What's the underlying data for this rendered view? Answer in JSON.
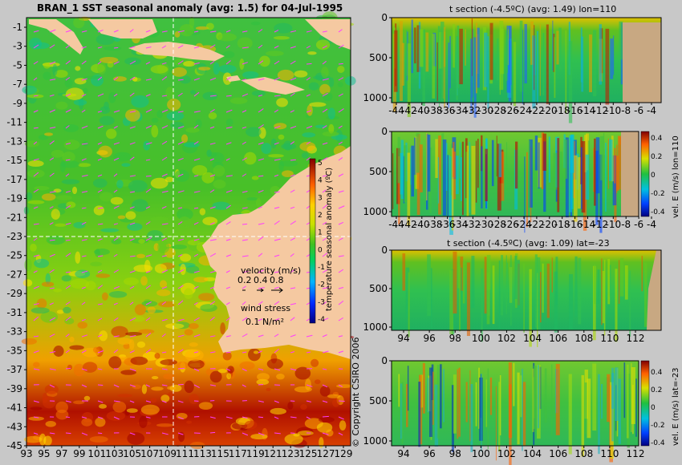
{
  "colors": {
    "background": "#c8c8c8",
    "land": "#f5c9a1",
    "section_land": "#c8a882",
    "vector": "#ff3cff",
    "section_line": "#ffffff"
  },
  "copyright": "© Copyright CSIRO 2006",
  "chart_data": [
    {
      "type": "heatmap",
      "panel": "map",
      "title": "BRAN_1  SST seasonal anomaly  (avg: 1.5) for 04-Jul-1995",
      "x_ticks": [
        "93",
        "95",
        "97",
        "99",
        "101",
        "103",
        "105",
        "107",
        "109",
        "111",
        "113",
        "115",
        "117",
        "119",
        "121",
        "123",
        "125",
        "127",
        "129"
      ],
      "y_ticks": [
        "-1",
        "-3",
        "-5",
        "-7",
        "-9",
        "-11",
        "-13",
        "-15",
        "-17",
        "-19",
        "-21",
        "-23",
        "-25",
        "-27",
        "-29",
        "-31",
        "-33",
        "-35",
        "-37",
        "-39",
        "-41",
        "-43",
        "-45"
      ],
      "xlim": [
        93,
        130
      ],
      "ylim": [
        -45,
        0
      ],
      "section_lines": {
        "lon": 110,
        "lat": -23
      },
      "colorbar": {
        "label": "temperature seasonal anomaly (ºC)",
        "ticks": [
          "5",
          "4",
          "3",
          "2",
          "1",
          "0",
          "-1",
          "-2",
          "-3",
          "-4"
        ],
        "range": [
          -4,
          5
        ]
      },
      "legend": {
        "velocity_title": "velocity (m/s)",
        "velocity_values": [
          "0.2",
          "0.4",
          "0.8"
        ],
        "wind_title": "wind stress",
        "wind_value": "0.1 N/m²"
      }
    },
    {
      "type": "heatmap",
      "panel": "t-section-lon",
      "title": "t section (-4.5ºC) (avg: 1.49) lon=110",
      "x_ticks": [
        "-44",
        "-42",
        "-40",
        "-38",
        "-36",
        "-34",
        "-32",
        "-30",
        "-28",
        "-26",
        "-24",
        "-22",
        "-20",
        "-18",
        "-16",
        "-14",
        "-12",
        "-10",
        "-8",
        "-6",
        "-4"
      ],
      "y_ticks": [
        "0",
        "500",
        "1000"
      ]
    },
    {
      "type": "heatmap",
      "panel": "vel-section-lon",
      "title": "",
      "x_ticks": [
        "-44",
        "-42",
        "-40",
        "-38",
        "-36",
        "-34",
        "-32",
        "-30",
        "-28",
        "-26",
        "-24",
        "-22",
        "-20",
        "-18",
        "-16",
        "-14",
        "-12",
        "-10",
        "-8",
        "-6",
        "-4"
      ],
      "y_ticks": [
        "0",
        "500",
        "1000"
      ],
      "colorbar": {
        "label": "vel. E (m/s) lon=110",
        "ticks": [
          "0.4",
          "0.2",
          "0",
          "-0.2",
          "-0.4"
        ]
      }
    },
    {
      "type": "heatmap",
      "panel": "t-section-lat",
      "title": "t section (-4.5ºC) (avg: 1.09) lat=-23",
      "x_ticks": [
        "94",
        "96",
        "98",
        "100",
        "102",
        "104",
        "106",
        "108",
        "110",
        "112"
      ],
      "y_ticks": [
        "0",
        "500",
        "1000"
      ]
    },
    {
      "type": "heatmap",
      "panel": "vel-section-lat",
      "title": "",
      "x_ticks": [
        "94",
        "96",
        "98",
        "100",
        "102",
        "104",
        "106",
        "108",
        "110",
        "112"
      ],
      "y_ticks": [
        "0",
        "500",
        "1000"
      ],
      "colorbar": {
        "label": "vel. E (m/s) lat=-23",
        "ticks": [
          "0.4",
          "0.2",
          "0",
          "-0.2",
          "-0.4"
        ]
      }
    }
  ]
}
